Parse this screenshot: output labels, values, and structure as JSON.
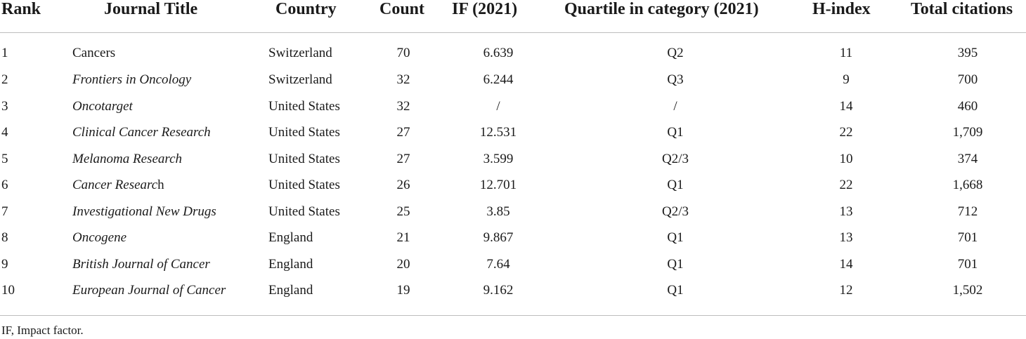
{
  "table": {
    "headers": {
      "rank": "Rank",
      "title": "Journal Title",
      "country": "Country",
      "count": "Count",
      "if": "IF (2021)",
      "quartile": "Quartile in category (2021)",
      "h_index": "H-index",
      "total": "Total citations"
    },
    "rows": [
      {
        "rank": "1",
        "title": "Cancers",
        "country": "Switzerland",
        "count": "70",
        "if": "6.639",
        "quartile": "Q2",
        "h_index": "11",
        "total": "395"
      },
      {
        "rank": "2",
        "title": "Frontiers in Oncology",
        "country": "Switzerland",
        "count": "32",
        "if": "6.244",
        "quartile": "Q3",
        "h_index": "9",
        "total": "700"
      },
      {
        "rank": "3",
        "title": "Oncotarget",
        "country": "United States",
        "count": "32",
        "if": "/",
        "quartile": "/",
        "h_index": "14",
        "total": "460"
      },
      {
        "rank": "4",
        "title": "Clinical Cancer Research",
        "country": "United States",
        "count": "27",
        "if": "12.531",
        "quartile": "Q1",
        "h_index": "22",
        "total": "1,709"
      },
      {
        "rank": "5",
        "title": "Melanoma Research",
        "country": "United States",
        "count": "27",
        "if": "3.599",
        "quartile": "Q2/3",
        "h_index": "10",
        "total": "374"
      },
      {
        "rank": "6",
        "title_italic": "Cancer Researc",
        "title_roman": "h",
        "country": "United States",
        "count": "26",
        "if": "12.701",
        "quartile": "Q1",
        "h_index": "22",
        "total": "1,668"
      },
      {
        "rank": "7",
        "title": "Investigational New Drugs",
        "country": "United States",
        "count": "25",
        "if": "3.85",
        "quartile": "Q2/3",
        "h_index": "13",
        "total": "712"
      },
      {
        "rank": "8",
        "title": "Oncogene",
        "country": "England",
        "count": "21",
        "if": "9.867",
        "quartile": "Q1",
        "h_index": "13",
        "total": "701"
      },
      {
        "rank": "9",
        "title": "British Journal of Cancer",
        "country": "England",
        "count": "20",
        "if": "7.64",
        "quartile": "Q1",
        "h_index": "14",
        "total": "701"
      },
      {
        "rank": "10",
        "title": "European Journal of Cancer",
        "country": "England",
        "count": "19",
        "if": "9.162",
        "quartile": "Q1",
        "h_index": "12",
        "total": "1,502"
      }
    ]
  },
  "footnote": "IF, Impact factor."
}
